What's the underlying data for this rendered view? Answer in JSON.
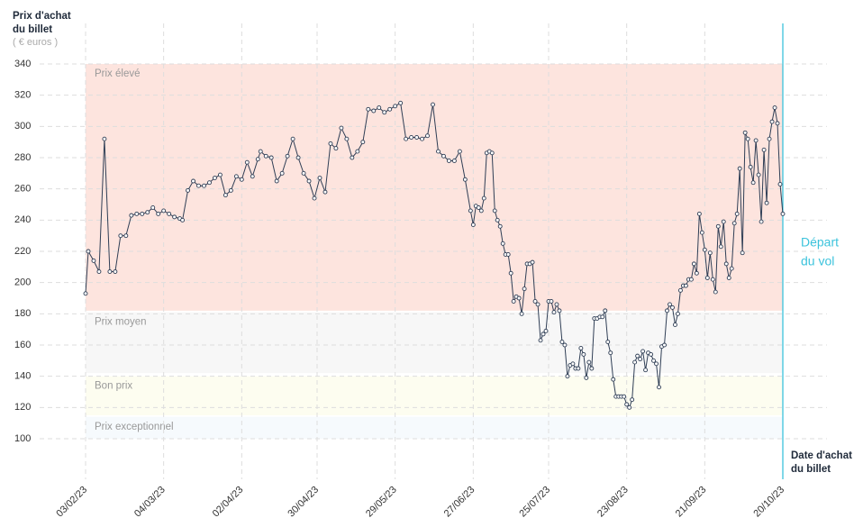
{
  "chart_data": {
    "type": "line",
    "y_title": [
      "Prix d'achat",
      "du billet"
    ],
    "y_unit": "( € euros )",
    "x_title": [
      "Date d'achat",
      "du billet"
    ],
    "departure_label": [
      "Départ",
      "du vol"
    ],
    "departure_date": "2023-10-20",
    "departure_color": "#3cc3dc",
    "ylim": [
      100,
      340
    ],
    "yticks": [
      100,
      120,
      140,
      160,
      180,
      200,
      220,
      240,
      260,
      280,
      300,
      320,
      340
    ],
    "xlim": [
      "2023-02-03",
      "2023-10-20"
    ],
    "xticks": [
      {
        "value": "2023-02-03",
        "label": "03/02/23"
      },
      {
        "value": "2023-03-04",
        "label": "04/03/23"
      },
      {
        "value": "2023-04-02",
        "label": "02/04/23"
      },
      {
        "value": "2023-04-30",
        "label": "30/04/23"
      },
      {
        "value": "2023-05-29",
        "label": "29/05/23"
      },
      {
        "value": "2023-06-27",
        "label": "27/06/23"
      },
      {
        "value": "2023-07-25",
        "label": "25/07/23"
      },
      {
        "value": "2023-08-23",
        "label": "23/08/23"
      },
      {
        "value": "2023-09-21",
        "label": "21/09/23"
      },
      {
        "value": "2023-10-20",
        "label": "20/10/23"
      }
    ],
    "grid": true,
    "zones": [
      {
        "label": "Prix élevé",
        "from": 182,
        "to": 340,
        "color": "#fde4de"
      },
      {
        "label": "Prix moyen",
        "from": 142,
        "to": 181,
        "color": "#f7f7f7"
      },
      {
        "label": "Bon prix",
        "from": 115,
        "to": 140,
        "color": "#fdfdf0"
      },
      {
        "label": "Prix exceptionnel",
        "from": 100,
        "to": 114,
        "color": "#f6fafd"
      }
    ],
    "color": "#2f3e55",
    "x": [
      "2023-02-03",
      "2023-02-04",
      "2023-02-06",
      "2023-02-08",
      "2023-02-10",
      "2023-02-12",
      "2023-02-14",
      "2023-02-16",
      "2023-02-18",
      "2023-02-20",
      "2023-02-22",
      "2023-02-24",
      "2023-02-26",
      "2023-02-28",
      "2023-03-02",
      "2023-03-04",
      "2023-03-06",
      "2023-03-08",
      "2023-03-10",
      "2023-03-11",
      "2023-03-13",
      "2023-03-15",
      "2023-03-17",
      "2023-03-19",
      "2023-03-21",
      "2023-03-23",
      "2023-03-25",
      "2023-03-27",
      "2023-03-29",
      "2023-03-31",
      "2023-04-02",
      "2023-04-04",
      "2023-04-06",
      "2023-04-08",
      "2023-04-09",
      "2023-04-11",
      "2023-04-13",
      "2023-04-15",
      "2023-04-17",
      "2023-04-19",
      "2023-04-21",
      "2023-04-23",
      "2023-04-25",
      "2023-04-27",
      "2023-04-29",
      "2023-05-01",
      "2023-05-03",
      "2023-05-05",
      "2023-05-07",
      "2023-05-09",
      "2023-05-11",
      "2023-05-13",
      "2023-05-15",
      "2023-05-17",
      "2023-05-19",
      "2023-05-21",
      "2023-05-23",
      "2023-05-25",
      "2023-05-27",
      "2023-05-29",
      "2023-05-31",
      "2023-06-02",
      "2023-06-04",
      "2023-06-06",
      "2023-06-08",
      "2023-06-10",
      "2023-06-12",
      "2023-06-14",
      "2023-06-16",
      "2023-06-18",
      "2023-06-20",
      "2023-06-22",
      "2023-06-24",
      "2023-06-26",
      "2023-06-27",
      "2023-06-28",
      "2023-06-29",
      "2023-06-30",
      "2023-07-01",
      "2023-07-02",
      "2023-07-03",
      "2023-07-04",
      "2023-07-05",
      "2023-07-06",
      "2023-07-07",
      "2023-07-08",
      "2023-07-09",
      "2023-07-10",
      "2023-07-11",
      "2023-07-12",
      "2023-07-13",
      "2023-07-14",
      "2023-07-15",
      "2023-07-16",
      "2023-07-17",
      "2023-07-18",
      "2023-07-19",
      "2023-07-20",
      "2023-07-21",
      "2023-07-22",
      "2023-07-23",
      "2023-07-24",
      "2023-07-25",
      "2023-07-26",
      "2023-07-27",
      "2023-07-28",
      "2023-07-29",
      "2023-07-30",
      "2023-07-31",
      "2023-08-01",
      "2023-08-02",
      "2023-08-03",
      "2023-08-04",
      "2023-08-05",
      "2023-08-06",
      "2023-08-07",
      "2023-08-08",
      "2023-08-09",
      "2023-08-10",
      "2023-08-11",
      "2023-08-12",
      "2023-08-13",
      "2023-08-14",
      "2023-08-15",
      "2023-08-16",
      "2023-08-17",
      "2023-08-18",
      "2023-08-19",
      "2023-08-20",
      "2023-08-21",
      "2023-08-22",
      "2023-08-23",
      "2023-08-24",
      "2023-08-25",
      "2023-08-26",
      "2023-08-27",
      "2023-08-28",
      "2023-08-29",
      "2023-08-30",
      "2023-08-31",
      "2023-09-01",
      "2023-09-02",
      "2023-09-03",
      "2023-09-04",
      "2023-09-05",
      "2023-09-06",
      "2023-09-07",
      "2023-09-08",
      "2023-09-09",
      "2023-09-10",
      "2023-09-11",
      "2023-09-12",
      "2023-09-13",
      "2023-09-14",
      "2023-09-15",
      "2023-09-16",
      "2023-09-17",
      "2023-09-18",
      "2023-09-19",
      "2023-09-20",
      "2023-09-21",
      "2023-09-22",
      "2023-09-23",
      "2023-09-24",
      "2023-09-25",
      "2023-09-26",
      "2023-09-27",
      "2023-09-28",
      "2023-09-29",
      "2023-09-30",
      "2023-10-01",
      "2023-10-02",
      "2023-10-03",
      "2023-10-04",
      "2023-10-05",
      "2023-10-06",
      "2023-10-07",
      "2023-10-08",
      "2023-10-09",
      "2023-10-10",
      "2023-10-11",
      "2023-10-12",
      "2023-10-13",
      "2023-10-14",
      "2023-10-15",
      "2023-10-16",
      "2023-10-17",
      "2023-10-18",
      "2023-10-19",
      "2023-10-20"
    ],
    "values": [
      193,
      220,
      214,
      207,
      292,
      207,
      207,
      230,
      230,
      243,
      244,
      244,
      245,
      248,
      244,
      246,
      244,
      242,
      241,
      240,
      259,
      265,
      262,
      262,
      264,
      267,
      269,
      256,
      259,
      268,
      266,
      277,
      268,
      279,
      284,
      281,
      280,
      265,
      270,
      281,
      292,
      280,
      270,
      265,
      254,
      267,
      258,
      289,
      286,
      299,
      292,
      280,
      284,
      290,
      311,
      310,
      312,
      309,
      311,
      313,
      315,
      292,
      293,
      293,
      292,
      294,
      314,
      284,
      281,
      278,
      278,
      284,
      266,
      246,
      237,
      249,
      248,
      246,
      254,
      283,
      284,
      283,
      246,
      240,
      236,
      225,
      218,
      218,
      206,
      188,
      191,
      190,
      180,
      196,
      212,
      212,
      213,
      188,
      186,
      163,
      167,
      169,
      188,
      188,
      181,
      186,
      182,
      162,
      160,
      140,
      147,
      148,
      145,
      145,
      158,
      154,
      139,
      149,
      145,
      177,
      177,
      178,
      178,
      182,
      162,
      155,
      138,
      127,
      127,
      127,
      127,
      122,
      120,
      125,
      149,
      153,
      151,
      156,
      144,
      155,
      154,
      150,
      148,
      133,
      159,
      160,
      182,
      186,
      184,
      173,
      180,
      195,
      198,
      198,
      202,
      202,
      212,
      206,
      244,
      232,
      221,
      203,
      219,
      202,
      194,
      236,
      223,
      239,
      212,
      203,
      209,
      238,
      244,
      273,
      219,
      296,
      292,
      274,
      264,
      291,
      269,
      239,
      285,
      251,
      292,
      303,
      312,
      302,
      263,
      244
    ]
  }
}
